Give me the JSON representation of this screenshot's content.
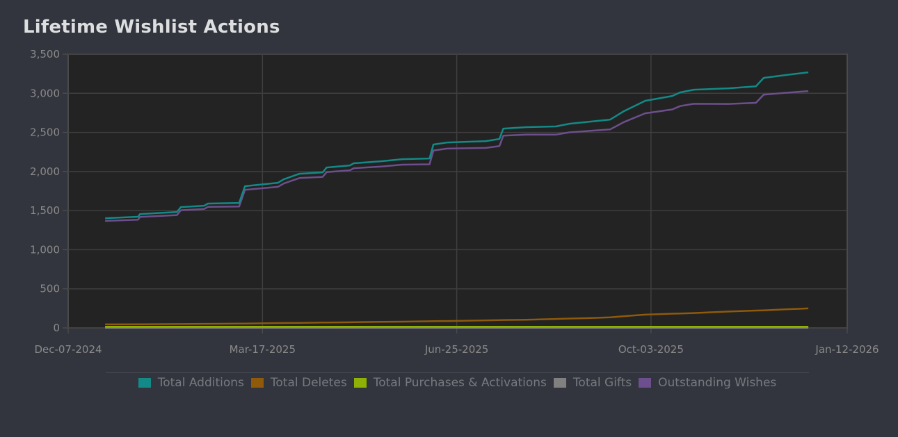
{
  "title": "Lifetime Wishlist Actions",
  "chart_data": {
    "type": "line",
    "title": "Lifetime Wishlist Actions",
    "xlabel": "",
    "ylabel": "",
    "xlim": [
      "2024-12-07",
      "2026-01-12"
    ],
    "ylim": [
      0,
      3500
    ],
    "x_ticks": [
      "Dec-07-2024",
      "Mar-17-2025",
      "Jun-25-2025",
      "Oct-03-2025",
      "Jan-12-2026"
    ],
    "x_tick_dates": [
      "2024-12-07",
      "2025-03-17",
      "2025-06-25",
      "2025-10-03",
      "2026-01-12"
    ],
    "y_ticks": [
      "0",
      "500",
      "1,000",
      "1,500",
      "2,000",
      "2,500",
      "3,000",
      "3,500"
    ],
    "y_tick_values": [
      0,
      500,
      1000,
      1500,
      2000,
      2500,
      3000,
      3500
    ],
    "grid": true,
    "legend_position": "bottom",
    "x": [
      "2024-12-26",
      "2025-01-12",
      "2025-01-13",
      "2025-02-01",
      "2025-02-03",
      "2025-02-15",
      "2025-02-17",
      "2025-03-05",
      "2025-03-08",
      "2025-03-25",
      "2025-03-28",
      "2025-04-05",
      "2025-04-17",
      "2025-04-19",
      "2025-05-01",
      "2025-05-03",
      "2025-05-17",
      "2025-05-28",
      "2025-06-11",
      "2025-06-13",
      "2025-06-20",
      "2025-07-10",
      "2025-07-17",
      "2025-07-19",
      "2025-07-31",
      "2025-08-15",
      "2025-08-22",
      "2025-09-02",
      "2025-09-12",
      "2025-09-19",
      "2025-09-30",
      "2025-10-14",
      "2025-10-18",
      "2025-10-25",
      "2025-11-12",
      "2025-11-26",
      "2025-11-30",
      "2025-12-11",
      "2025-12-23"
    ],
    "series": [
      {
        "name": "Total Additions",
        "color": "#138a87",
        "values": [
          1403,
          1421,
          1456,
          1483,
          1545,
          1563,
          1590,
          1598,
          1812,
          1856,
          1900,
          1971,
          1989,
          2051,
          2078,
          2105,
          2131,
          2158,
          2167,
          2345,
          2371,
          2389,
          2416,
          2549,
          2567,
          2576,
          2611,
          2638,
          2664,
          2771,
          2904,
          2966,
          3011,
          3046,
          3064,
          3090,
          3197,
          3233,
          3268
        ]
      },
      {
        "name": "Total Deletes",
        "color": "#8f5a0a",
        "values": [
          45,
          47,
          47,
          50,
          50,
          52,
          52,
          55,
          56,
          62,
          63,
          65,
          68,
          69,
          72,
          73,
          77,
          80,
          85,
          86,
          88,
          97,
          100,
          101,
          105,
          115,
          120,
          127,
          135,
          150,
          170,
          182,
          185,
          190,
          210,
          222,
          225,
          237,
          250
        ]
      },
      {
        "name": "Total Purchases & Activations",
        "color": "#8fb004",
        "values": [
          15,
          15,
          15,
          15,
          15,
          15,
          15,
          15,
          15,
          15,
          15,
          15,
          15,
          15,
          15,
          15,
          15,
          15,
          15,
          15,
          15,
          15,
          15,
          15,
          15,
          15,
          15,
          15,
          15,
          15,
          15,
          15,
          15,
          15,
          15,
          15,
          15,
          15,
          15
        ]
      },
      {
        "name": "Total Gifts",
        "color": "#808080",
        "values": [
          3,
          3,
          3,
          3,
          3,
          3,
          3,
          3,
          3,
          3,
          3,
          3,
          3,
          3,
          3,
          3,
          3,
          3,
          3,
          3,
          3,
          3,
          3,
          3,
          3,
          3,
          3,
          3,
          3,
          3,
          3,
          3,
          3,
          3,
          3,
          3,
          3,
          3,
          3
        ]
      },
      {
        "name": "Outstanding Wishes",
        "color": "#6c4f8c",
        "values": [
          1368,
          1384,
          1419,
          1443,
          1505,
          1521,
          1548,
          1553,
          1766,
          1804,
          1847,
          1916,
          1931,
          1992,
          2016,
          2042,
          2064,
          2088,
          2092,
          2269,
          2293,
          2302,
          2326,
          2458,
          2472,
          2471,
          2501,
          2521,
          2539,
          2631,
          2744,
          2794,
          2836,
          2866,
          2864,
          2878,
          2982,
          3006,
          3028
        ]
      }
    ]
  },
  "colors": {
    "background": "#32353d",
    "plot_background": "#232323",
    "grid": "#3f3f3f"
  }
}
